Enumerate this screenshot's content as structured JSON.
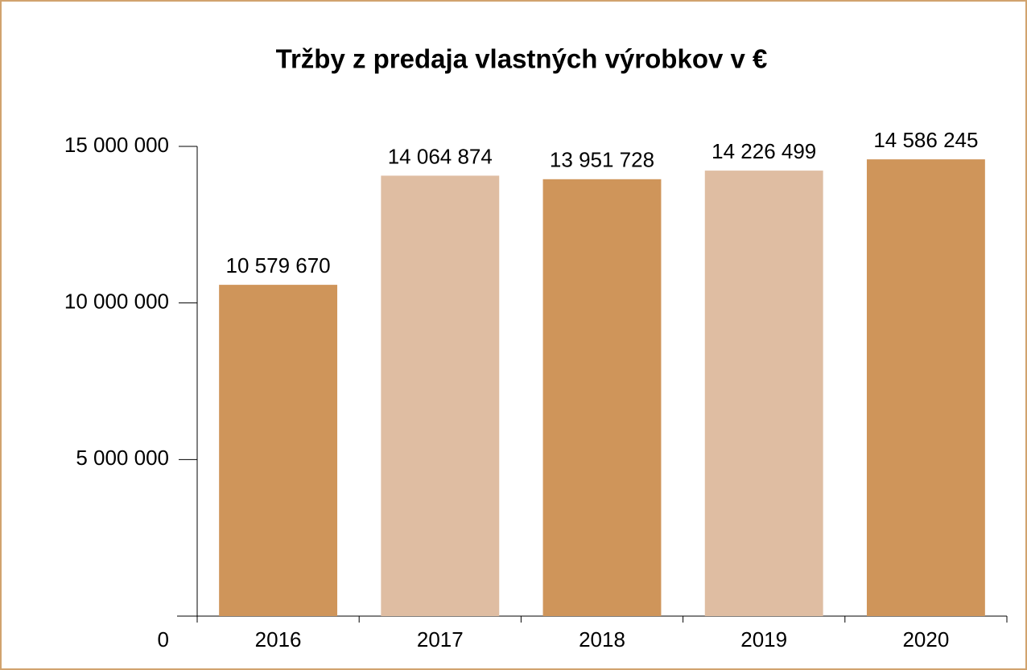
{
  "chart_data": {
    "type": "bar",
    "title": "Tržby z predaja vlastných výrobkov v €",
    "categories": [
      "2016",
      "2017",
      "2018",
      "2019",
      "2020"
    ],
    "values": [
      10579670,
      14064874,
      13951728,
      14226499,
      14586245
    ],
    "value_labels": [
      "10 579 670",
      "14 064 874",
      "13 951 728",
      "14 226 499",
      "14 586 245"
    ],
    "colors": [
      "#cf955a",
      "#dfbda2",
      "#cf955a",
      "#dfbda2",
      "#cf955a"
    ],
    "ylim": [
      0,
      15000000
    ],
    "yticks": [
      0,
      {
        "value": 5000000,
        "label": "5 000 000"
      },
      {
        "value": 10000000,
        "label": "10 000 000"
      },
      {
        "value": 15000000,
        "label": "15 000 000"
      }
    ],
    "grid": false
  }
}
